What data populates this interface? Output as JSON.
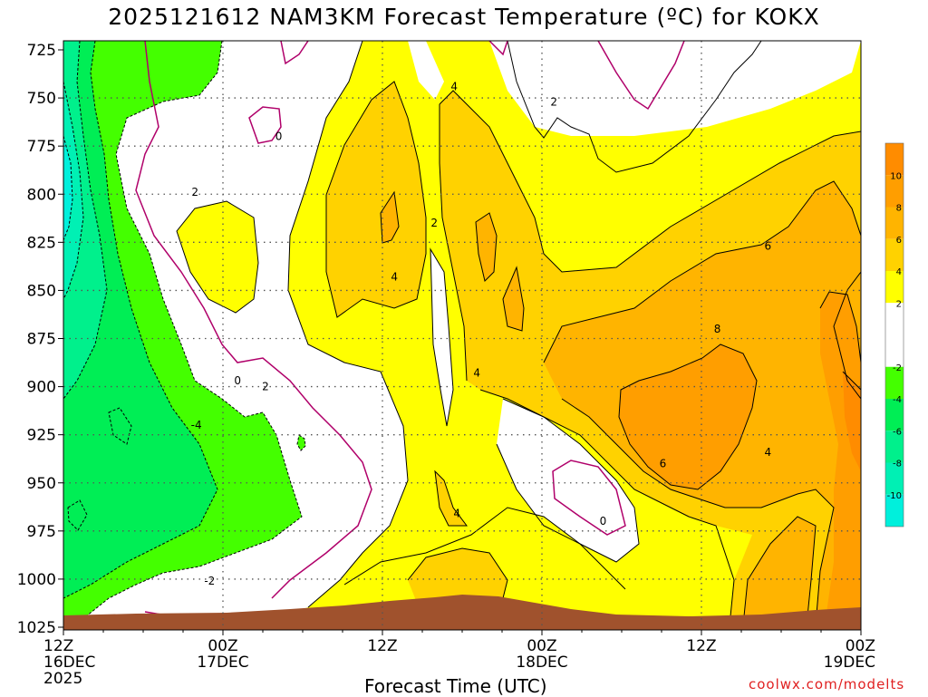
{
  "title": "2025121612 NAM3KM Forecast Temperature (ºC) for KOKX",
  "credit": "coolwx.com/modelts",
  "chart_data": {
    "type": "heatmap",
    "title": "2025121612 NAM3KM Forecast Temperature (ºC) for KOKX",
    "xlabel": "Forecast Time (UTC)",
    "ylabel": "",
    "y_ticks": [
      "725",
      "750",
      "775",
      "800",
      "825",
      "850",
      "875",
      "900",
      "925",
      "950",
      "975",
      "1000",
      "1025"
    ],
    "y_range": [
      725,
      1025
    ],
    "x_ticks": [
      {
        "hour": 0,
        "lines": [
          "12Z",
          "16DEC",
          "2025"
        ]
      },
      {
        "hour": 12,
        "lines": [
          "00Z",
          "17DEC"
        ]
      },
      {
        "hour": 24,
        "lines": [
          "12Z"
        ]
      },
      {
        "hour": 36,
        "lines": [
          "00Z",
          "18DEC"
        ]
      },
      {
        "hour": 48,
        "lines": [
          "12Z"
        ]
      },
      {
        "hour": 60,
        "lines": [
          "00Z",
          "19DEC"
        ]
      }
    ],
    "x_range": [
      0,
      60
    ],
    "grid": true,
    "colorbar": {
      "labels": [
        "10",
        "8",
        "6",
        "4",
        "2",
        "-2",
        "-4",
        "-6",
        "-8",
        "-10"
      ],
      "bands": [
        {
          "lo": 10,
          "hi": 12,
          "color": "#ff8c00"
        },
        {
          "lo": 8,
          "hi": 10,
          "color": "#ff9e00"
        },
        {
          "lo": 6,
          "hi": 8,
          "color": "#ffb400"
        },
        {
          "lo": 4,
          "hi": 6,
          "color": "#ffd200"
        },
        {
          "lo": 2,
          "hi": 4,
          "color": "#ffff00"
        },
        {
          "lo": -2,
          "hi": 2,
          "color": "#ffffff"
        },
        {
          "lo": -4,
          "hi": -2,
          "color": "#44ff00"
        },
        {
          "lo": -6,
          "hi": -4,
          "color": "#00ee55"
        },
        {
          "lo": -8,
          "hi": -6,
          "color": "#00f08c"
        },
        {
          "lo": -10,
          "hi": -8,
          "color": "#00f0b4"
        },
        {
          "lo": -12,
          "hi": -10,
          "color": "#00f0dc"
        }
      ]
    },
    "contour_labels": [
      {
        "text": "4",
        "hour": 29.4,
        "p": 744
      },
      {
        "text": "2",
        "hour": 36.9,
        "p": 752
      },
      {
        "text": "0",
        "hour": 16.2,
        "p": 770
      },
      {
        "text": "2",
        "hour": 9.9,
        "p": 799
      },
      {
        "text": "2",
        "hour": 27.9,
        "p": 815
      },
      {
        "text": "6",
        "hour": 53.0,
        "p": 827
      },
      {
        "text": "4",
        "hour": 24.9,
        "p": 843
      },
      {
        "text": "8",
        "hour": 49.2,
        "p": 870
      },
      {
        "text": "0",
        "hour": 13.1,
        "p": 897
      },
      {
        "text": "4",
        "hour": 31.1,
        "p": 893
      },
      {
        "text": "2",
        "hour": 15.2,
        "p": 900
      },
      {
        "text": "-4",
        "hour": 10.0,
        "p": 920
      },
      {
        "text": "6",
        "hour": 45.1,
        "p": 940
      },
      {
        "text": "4",
        "hour": 53.0,
        "p": 934
      },
      {
        "text": "4",
        "hour": 29.6,
        "p": 966
      },
      {
        "text": "0",
        "hour": 40.6,
        "p": 970
      },
      {
        "text": "-2",
        "hour": 11.0,
        "p": 1001
      }
    ]
  }
}
